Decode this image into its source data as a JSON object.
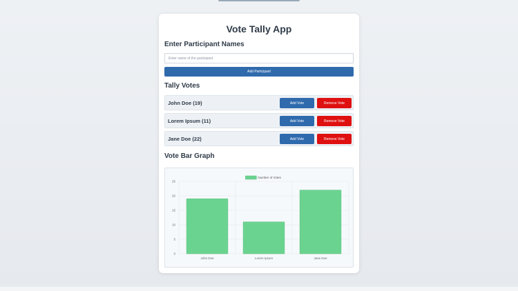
{
  "app": {
    "title": "Vote Tally App"
  },
  "participants_section": {
    "heading": "Enter Participant Names",
    "input_placeholder": "Enter name of the participant",
    "input_value": "",
    "add_button_label": "Add Participant"
  },
  "tally_section": {
    "heading": "Tally Votes",
    "rows": [
      {
        "label": "John Doe (19)",
        "add_label": "Add Vote",
        "remove_label": "Remove Vote"
      },
      {
        "label": "Lorem Ipsum (11)",
        "add_label": "Add Vote",
        "remove_label": "Remove Vote"
      },
      {
        "label": "Jane Doe (22)",
        "add_label": "Add Vote",
        "remove_label": "Remove Vote"
      }
    ]
  },
  "graph_section": {
    "heading": "Vote Bar Graph"
  },
  "colors": {
    "primary_button": "#2f6aad",
    "danger_button": "#df1010",
    "bar_fill": "#6bd390",
    "bar_stroke": "#57c07c"
  },
  "chart_data": {
    "type": "bar",
    "categories": [
      "John Doe",
      "Lorem Ipsum",
      "Jane Doe"
    ],
    "series": [
      {
        "name": "Number of Votes",
        "values": [
          19,
          11,
          22
        ]
      }
    ],
    "title": "",
    "xlabel": "",
    "ylabel": "",
    "ylim": [
      0,
      25
    ],
    "yticks": [
      0,
      5,
      10,
      15,
      20,
      25
    ],
    "grid": true,
    "legend": "top"
  }
}
